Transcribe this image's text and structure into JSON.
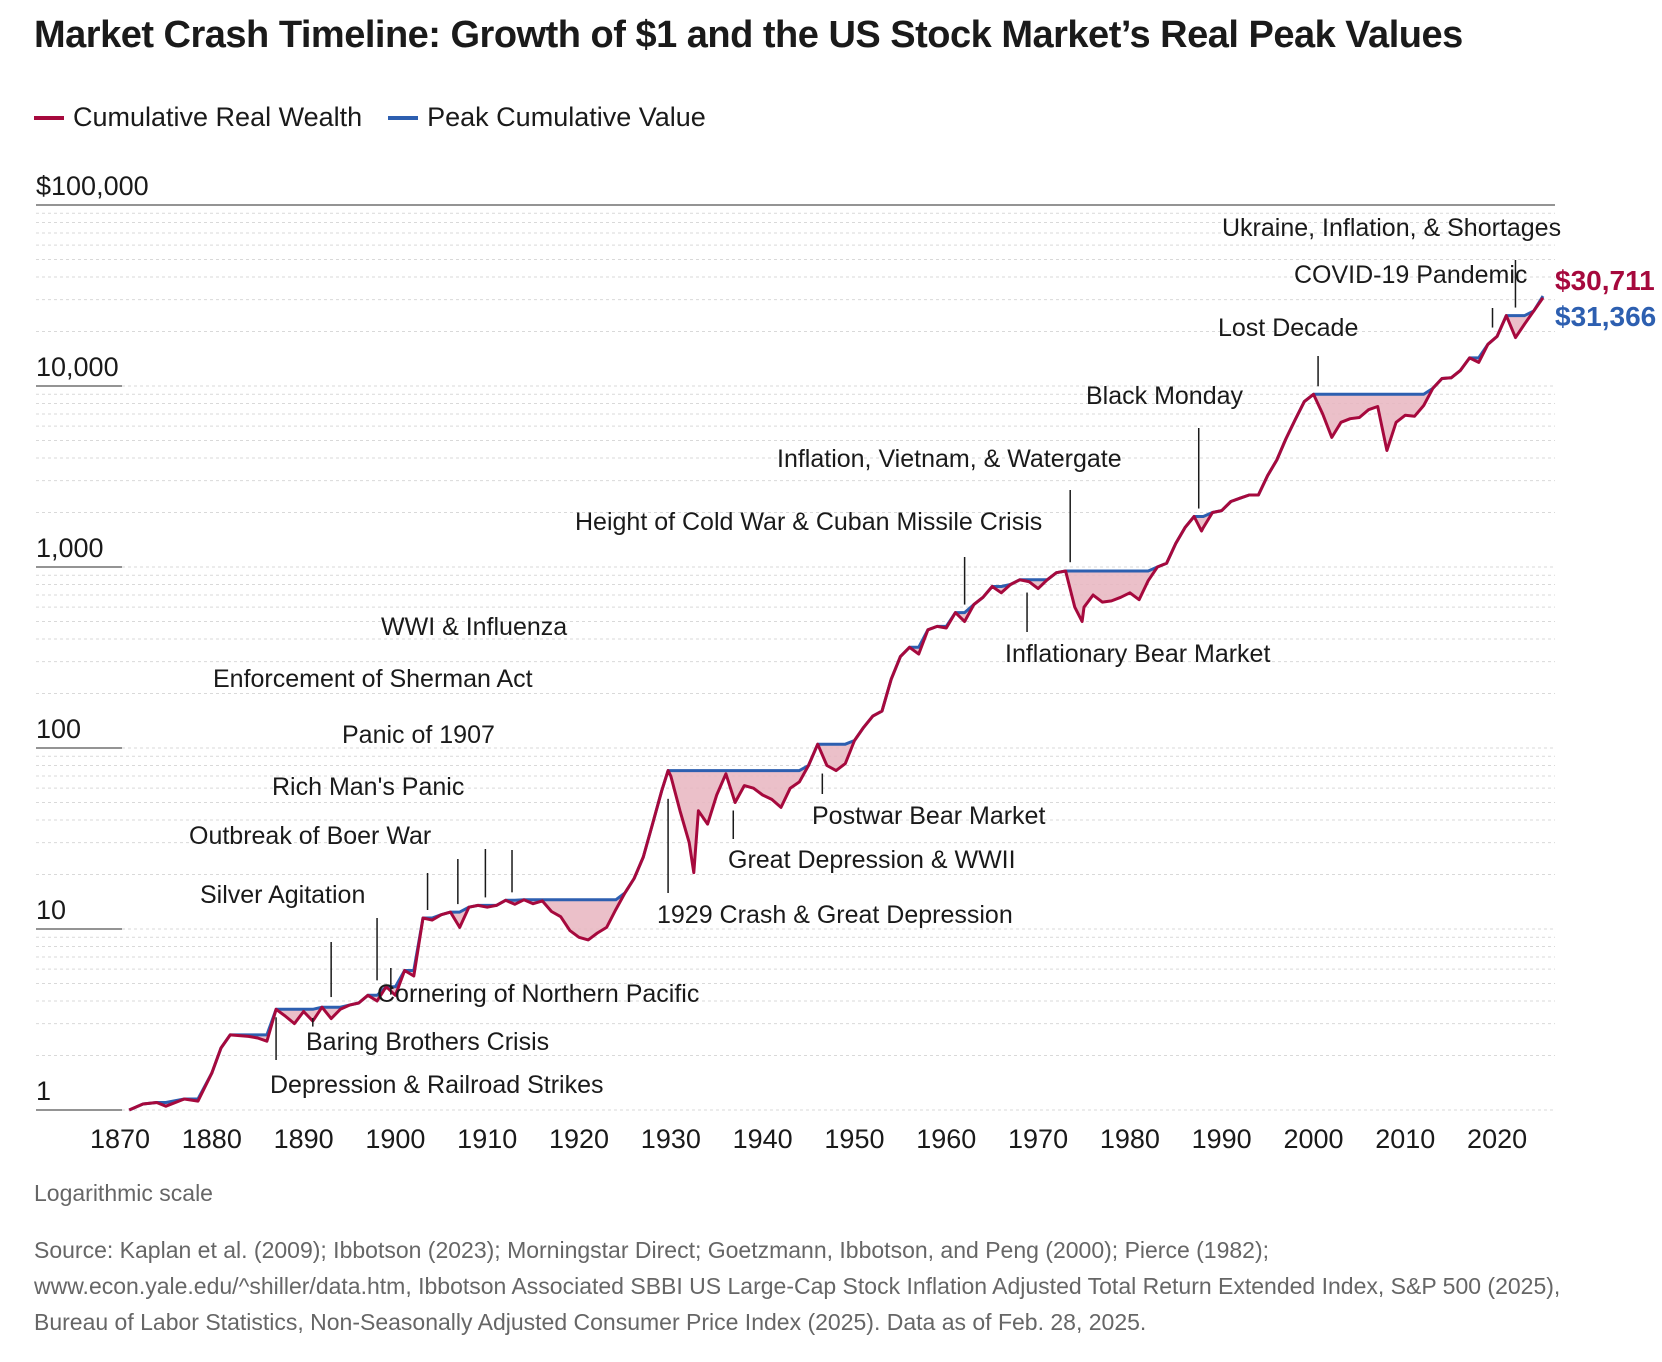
{
  "title": "Market Crash Timeline: Growth of $1 and the US Stock Market’s Real Peak Values",
  "legend": [
    {
      "label": "Cumulative Real Wealth",
      "color": "#a6093d"
    },
    {
      "label": "Peak Cumulative Value",
      "color": "#2d5fb0"
    }
  ],
  "scale_note": "Logarithmic scale",
  "source": "Source: Kaplan et al. (2009); Ibbotson (2023); Morningstar Direct; Goetzmann, Ibbotson, and Peng (2000); Pierce (1982); www.econ.yale.edu/^shiller/data.htm, Ibbotson Associated SBBI US Large-Cap Stock Inflation Adjusted Total Return Extended Index, S&P 500 (2025), Bureau of Labor Statistics, Non-Seasonally Adjusted Consumer Price Index (2025). Data as of Feb. 28, 2025.",
  "chart_data": {
    "type": "line",
    "yscale": "log",
    "ylim": [
      1,
      100000
    ],
    "xlim": [
      1870,
      2025
    ],
    "y_ticks": [
      {
        "value": 1,
        "label": "1"
      },
      {
        "value": 10,
        "label": "10"
      },
      {
        "value": 100,
        "label": "100"
      },
      {
        "value": 1000,
        "label": "1,000"
      },
      {
        "value": 10000,
        "label": "10,000"
      },
      {
        "value": 100000,
        "label": "$100,000"
      }
    ],
    "x_ticks": [
      1870,
      1880,
      1890,
      1900,
      1910,
      1920,
      1930,
      1940,
      1950,
      1960,
      1970,
      1980,
      1990,
      2000,
      2010,
      2020
    ],
    "series": [
      {
        "name": "Cumulative Real Wealth",
        "color": "#a6093d",
        "x": [
          1871,
          1872.5,
          1874,
          1875,
          1877,
          1878.5,
          1880,
          1881,
          1882,
          1884,
          1885,
          1886,
          1887,
          1888,
          1889,
          1890,
          1891,
          1892,
          1893,
          1894,
          1895,
          1896,
          1897,
          1898,
          1899,
          1900,
          1901,
          1902,
          1903,
          1904,
          1905,
          1906,
          1907,
          1908,
          1909,
          1910,
          1911,
          1912,
          1913,
          1914,
          1915,
          1916,
          1917,
          1918,
          1919,
          1920,
          1921,
          1922,
          1923,
          1924,
          1925,
          1926,
          1927,
          1928,
          1929,
          1929.7,
          1930,
          1931,
          1932,
          1932.5,
          1933,
          1934,
          1935,
          1936,
          1937,
          1938,
          1939,
          1940,
          1941,
          1942,
          1943,
          1944,
          1945,
          1946,
          1947,
          1948,
          1949,
          1950,
          1951,
          1952,
          1953,
          1954,
          1955,
          1956,
          1957,
          1958,
          1959,
          1960,
          1961,
          1962,
          1963,
          1964,
          1965,
          1966,
          1967,
          1968,
          1969,
          1970,
          1971,
          1972,
          1973,
          1974,
          1974.8,
          1975,
          1976,
          1977,
          1978,
          1979,
          1980,
          1981,
          1982,
          1983,
          1984,
          1985,
          1986,
          1987,
          1987.8,
          1988,
          1989,
          1990,
          1991,
          1992,
          1993,
          1994,
          1995,
          1996,
          1997,
          1998,
          1999,
          2000,
          2001,
          2002,
          2003,
          2004,
          2005,
          2006,
          2007,
          2008,
          2009,
          2010,
          2011,
          2012,
          2013,
          2014,
          2015,
          2016,
          2017,
          2018,
          2019,
          2020,
          2021,
          2022,
          2023,
          2024,
          2025
        ],
        "values": [
          1.0,
          1.08,
          1.1,
          1.05,
          1.15,
          1.12,
          1.6,
          2.2,
          2.6,
          2.55,
          2.5,
          2.4,
          3.6,
          3.3,
          3.0,
          3.5,
          3.1,
          3.7,
          3.2,
          3.6,
          3.8,
          3.9,
          4.3,
          4.0,
          4.8,
          4.3,
          5.9,
          5.5,
          11.5,
          11.2,
          12.0,
          12.4,
          10.2,
          13.2,
          13.5,
          13.2,
          13.5,
          14.4,
          13.7,
          14.5,
          13.8,
          14.3,
          12.5,
          11.7,
          9.8,
          9.0,
          8.7,
          9.5,
          10.2,
          12.8,
          15.8,
          19.0,
          25.0,
          38.0,
          58.0,
          75.0,
          70.0,
          45.0,
          30.0,
          20.5,
          45.0,
          38.0,
          55.0,
          72.0,
          50.0,
          62.0,
          60.0,
          55.0,
          52.0,
          47.0,
          60.0,
          65.0,
          80.0,
          105.0,
          80.0,
          75.0,
          82.0,
          110.0,
          130.0,
          150.0,
          160.0,
          240.0,
          320.0,
          360.0,
          330.0,
          450.0,
          470.0,
          460.0,
          560.0,
          500.0,
          620.0,
          680.0,
          780.0,
          720.0,
          800.0,
          850.0,
          830.0,
          760.0,
          850.0,
          930.0,
          950.0,
          600.0,
          500.0,
          600.0,
          700.0,
          640.0,
          650.0,
          680.0,
          720.0,
          660.0,
          840.0,
          1000.0,
          1050.0,
          1350.0,
          1650.0,
          1900.0,
          1580.0,
          1650.0,
          2000.0,
          2050.0,
          2300.0,
          2400.0,
          2500.0,
          2500.0,
          3200.0,
          3900.0,
          5100.0,
          6500.0,
          8200.0,
          9000.0,
          7000.0,
          5200.0,
          6300.0,
          6600.0,
          6700.0,
          7400.0,
          7700.0,
          4400.0,
          6300.0,
          6900.0,
          6800.0,
          7800.0,
          9700.0,
          11000.0,
          11100.0,
          12200.0,
          14300.0,
          13500.0,
          17000.0,
          18800.0,
          24500.0,
          18500.0,
          22000.0,
          26000.0,
          30711.0
        ]
      },
      {
        "name": "Peak Cumulative Value",
        "color": "#2d5fb0",
        "x": [
          1871,
          1872.5,
          1874,
          1875,
          1877,
          1878.5,
          1880,
          1881,
          1882,
          1884,
          1885,
          1886,
          1887,
          1888,
          1889,
          1890,
          1891,
          1892,
          1893,
          1894,
          1895,
          1896,
          1897,
          1898,
          1899,
          1900,
          1901,
          1902,
          1903,
          1904,
          1905,
          1906,
          1907,
          1908,
          1909,
          1910,
          1911,
          1912,
          1913,
          1914,
          1915,
          1916,
          1917,
          1918,
          1919,
          1920,
          1921,
          1922,
          1923,
          1924,
          1925,
          1926,
          1927,
          1928,
          1929,
          1929.7,
          1930,
          1931,
          1932,
          1932.5,
          1933,
          1934,
          1935,
          1936,
          1937,
          1938,
          1939,
          1940,
          1941,
          1942,
          1943,
          1944,
          1945,
          1946,
          1947,
          1948,
          1949,
          1950,
          1951,
          1952,
          1953,
          1954,
          1955,
          1956,
          1957,
          1958,
          1959,
          1960,
          1961,
          1962,
          1963,
          1964,
          1965,
          1966,
          1967,
          1968,
          1969,
          1970,
          1971,
          1972,
          1973,
          1974,
          1974.8,
          1975,
          1976,
          1977,
          1978,
          1979,
          1980,
          1981,
          1982,
          1983,
          1984,
          1985,
          1986,
          1987,
          1987.8,
          1988,
          1989,
          1990,
          1991,
          1992,
          1993,
          1994,
          1995,
          1996,
          1997,
          1998,
          1999,
          2000,
          2001,
          2002,
          2003,
          2004,
          2005,
          2006,
          2007,
          2008,
          2009,
          2010,
          2011,
          2012,
          2013,
          2014,
          2015,
          2016,
          2017,
          2018,
          2019,
          2020,
          2021,
          2022,
          2023,
          2024,
          2025
        ],
        "values": [
          1.0,
          1.08,
          1.1,
          1.1,
          1.15,
          1.15,
          1.6,
          2.2,
          2.6,
          2.6,
          2.6,
          2.6,
          3.6,
          3.6,
          3.6,
          3.6,
          3.6,
          3.7,
          3.7,
          3.7,
          3.8,
          3.9,
          4.3,
          4.3,
          4.8,
          4.8,
          5.9,
          5.9,
          11.5,
          11.5,
          12.0,
          12.4,
          12.4,
          13.2,
          13.5,
          13.5,
          13.5,
          14.4,
          14.4,
          14.5,
          14.5,
          14.5,
          14.5,
          14.5,
          14.5,
          14.5,
          14.5,
          14.5,
          14.5,
          14.5,
          15.8,
          19.0,
          25.0,
          38.0,
          58.0,
          75.0,
          75.0,
          75.0,
          75.0,
          75.0,
          75.0,
          75.0,
          75.0,
          75.0,
          75.0,
          75.0,
          75.0,
          75.0,
          75.0,
          75.0,
          75.0,
          75.0,
          80.0,
          105.0,
          105.0,
          105.0,
          105.0,
          110.0,
          130.0,
          150.0,
          160.0,
          240.0,
          320.0,
          360.0,
          360.0,
          450.0,
          470.0,
          470.0,
          560.0,
          560.0,
          620.0,
          680.0,
          780.0,
          780.0,
          800.0,
          850.0,
          850.0,
          850.0,
          850.0,
          930.0,
          950.0,
          950.0,
          950.0,
          950.0,
          950.0,
          950.0,
          950.0,
          950.0,
          950.0,
          950.0,
          950.0,
          1000.0,
          1050.0,
          1350.0,
          1650.0,
          1900.0,
          1900.0,
          1900.0,
          2000.0,
          2050.0,
          2300.0,
          2400.0,
          2500.0,
          2500.0,
          3200.0,
          3900.0,
          5100.0,
          6500.0,
          8200.0,
          9000.0,
          9000.0,
          9000.0,
          9000.0,
          9000.0,
          9000.0,
          9000.0,
          9000.0,
          9000.0,
          9000.0,
          9000.0,
          9000.0,
          9000.0,
          9700.0,
          11000.0,
          11100.0,
          12200.0,
          14300.0,
          14300.0,
          17000.0,
          18800.0,
          24500.0,
          24500.0,
          24500.0,
          26000.0,
          31366.0
        ]
      }
    ],
    "end_labels": [
      {
        "label": "$30,711",
        "color": "#a6093d"
      },
      {
        "label": "$31,366",
        "color": "#2d5fb0"
      }
    ],
    "annotations": [
      {
        "label": "Depression & Railroad Strikes",
        "x": 1887,
        "y": 3.6,
        "side": "below"
      },
      {
        "label": "Baring Brothers Crisis",
        "x": 1891,
        "y": 3.2,
        "side": "below"
      },
      {
        "label": "Silver Agitation",
        "x": 1893,
        "y": 3.8,
        "side": "above"
      },
      {
        "label": "Cornering of Northern Pacific",
        "x": 1899.5,
        "y": 4.8,
        "side": "below"
      },
      {
        "label": "Outbreak of Boer War",
        "x": 1898,
        "y": 4.7,
        "side": "above"
      },
      {
        "label": "Rich Man's Panic",
        "x": 1903.5,
        "y": 11.5,
        "side": "above"
      },
      {
        "label": "Panic of 1907",
        "x": 1906.8,
        "y": 12.4,
        "side": "above"
      },
      {
        "label": "Enforcement of Sherman Act",
        "x": 1909.8,
        "y": 13.5,
        "side": "above"
      },
      {
        "label": "WWI & Influenza",
        "x": 1912.7,
        "y": 14.4,
        "side": "above"
      },
      {
        "label": "1929 Crash & Great Depression",
        "x": 1929.7,
        "y": 58,
        "side": "below"
      },
      {
        "label": "Great Depression & WWII",
        "x": 1936.8,
        "y": 50,
        "side": "below"
      },
      {
        "label": "Postwar Bear Market",
        "x": 1946.5,
        "y": 80,
        "side": "below"
      },
      {
        "label": "Height of Cold War & Cuban Missile Crisis",
        "x": 1962,
        "y": 560,
        "side": "above"
      },
      {
        "label": "Inflationary Bear Market",
        "x": 1968.8,
        "y": 800,
        "side": "below"
      },
      {
        "label": "Inflation, Vietnam, & Watergate",
        "x": 1973.5,
        "y": 960,
        "side": "above"
      },
      {
        "label": "Black Monday",
        "x": 1987.5,
        "y": 1900,
        "side": "above"
      },
      {
        "label": "Lost Decade",
        "x": 2000.5,
        "y": 9000,
        "side": "above"
      },
      {
        "label": "COVID-19 Pandemic",
        "x": 2019.5,
        "y": 19000,
        "side": "above"
      },
      {
        "label": "Ukraine, Inflation, & Shortages",
        "x": 2022,
        "y": 24500,
        "side": "above"
      }
    ],
    "fill_color": "#e7b5c0",
    "grid": true
  }
}
